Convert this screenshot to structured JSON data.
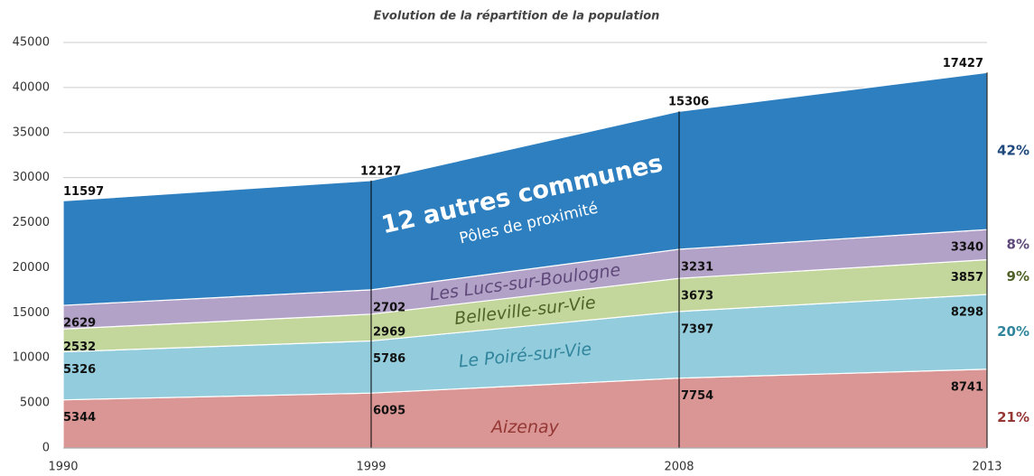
{
  "chart_data": {
    "type": "stacked_area",
    "title": "Evolution de la répartition de la population",
    "categories": [
      "1990",
      "1999",
      "2008",
      "2013"
    ],
    "ylim": [
      0,
      45000
    ],
    "yticks": [
      0,
      5000,
      10000,
      15000,
      20000,
      25000,
      30000,
      35000,
      40000,
      45000
    ],
    "grid": true,
    "series": [
      {
        "name": "Aizenay",
        "color": "#d99694",
        "label_color": "#953735",
        "values": [
          5344,
          6095,
          7754,
          8741
        ],
        "share_label": "21%"
      },
      {
        "name": "Le Poiré-sur-Vie",
        "color": "#93cddd",
        "label_color": "#31859c",
        "values": [
          5326,
          5786,
          7397,
          8298
        ],
        "share_label": "20%"
      },
      {
        "name": "Belleville-sur-Vie",
        "color": "#c3d69b",
        "label_color": "#4f6228",
        "values": [
          2532,
          2969,
          3673,
          3857
        ],
        "share_label": "9%"
      },
      {
        "name": "Les Lucs-sur-Boulogne",
        "color": "#b3a2c7",
        "label_color": "#5f497a",
        "values": [
          2629,
          2702,
          3231,
          3340
        ],
        "share_label": "8%"
      },
      {
        "name": "12 autres communes",
        "subtitle": "Pôles de proximité",
        "color": "#2e7fbf",
        "label_color": "#ffffff",
        "values": [
          11597,
          12127,
          15306,
          17427
        ],
        "share_label": "42%"
      }
    ]
  }
}
